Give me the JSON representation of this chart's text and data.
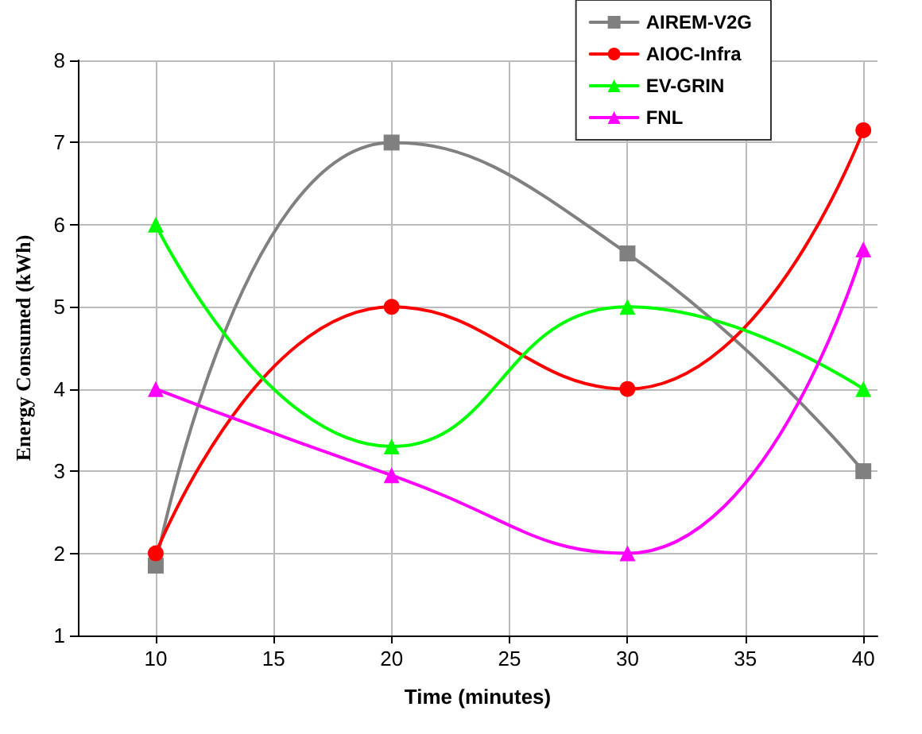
{
  "chart_data": {
    "type": "line",
    "xlabel": "Time (minutes)",
    "ylabel": "Energy Consumed (kWh)",
    "x": [
      10,
      20,
      30,
      40
    ],
    "series": [
      {
        "name": "AIREM-V2G",
        "color": "#808080",
        "marker": "square",
        "values": [
          1.85,
          7.0,
          5.65,
          3.0
        ]
      },
      {
        "name": "AIOC-Infra",
        "color": "#ff0000",
        "marker": "circle",
        "values": [
          2.0,
          5.0,
          4.0,
          7.15
        ]
      },
      {
        "name": "EV-GRIN",
        "color": "#00ff00",
        "marker": "triangle",
        "values": [
          6.0,
          3.3,
          5.0,
          4.0
        ]
      },
      {
        "name": "FNL",
        "color": "#ff00ff",
        "marker": "triangle",
        "values": [
          4.0,
          2.95,
          2.0,
          5.7
        ]
      }
    ],
    "xlim": [
      6.7,
      40.6
    ],
    "xticks": [
      10,
      15,
      20,
      25,
      30,
      35,
      40
    ],
    "ylim": [
      1,
      8
    ],
    "yticks": [
      1,
      2,
      3,
      4,
      5,
      6,
      7,
      8
    ],
    "grid": true,
    "legend": "top right",
    "line_style": "solid"
  }
}
